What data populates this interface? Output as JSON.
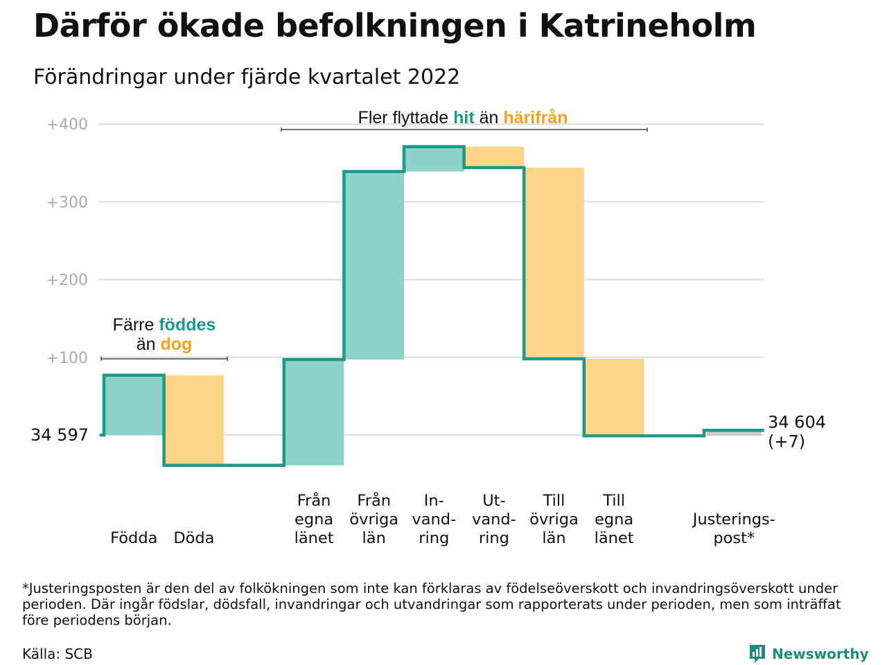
{
  "header": {
    "title": "Därför ökade befolkningen i Katrineholm",
    "subtitle": "Förändringar under fjärde kvartalet 2022"
  },
  "colors": {
    "inflow": "#8dd3cb",
    "outflow": "#fbd48a",
    "adjustment": "#cccccc",
    "line": "#1a9a8a",
    "hit": "#1a9a8a",
    "harifran": "#f5a11b",
    "grid": "#dddddd",
    "tick": "#aaaaaa"
  },
  "chart_data": {
    "type": "waterfall",
    "y_ticks": [
      "+100",
      "+200",
      "+300",
      "+400"
    ],
    "y_tick_values": [
      100,
      200,
      300,
      400
    ],
    "ylim": [
      -50,
      410
    ],
    "start": {
      "label": "34 597",
      "value": 34597
    },
    "end": {
      "label_line1": "34 604",
      "label_line2": "(+7)",
      "value": 34604,
      "change": 7
    },
    "steps": [
      {
        "label": [
          "Födda"
        ],
        "value": 77,
        "kind": "inflow"
      },
      {
        "label": [
          "Döda"
        ],
        "value": -116,
        "kind": "outflow"
      },
      {
        "label": [],
        "value": 0,
        "kind": "gap"
      },
      {
        "label": [
          "Från",
          "egna",
          "länet"
        ],
        "value": 136,
        "kind": "inflow"
      },
      {
        "label": [
          "Från",
          "övriga",
          "län"
        ],
        "value": 242,
        "kind": "inflow"
      },
      {
        "label": [
          "In-",
          "vand-",
          "ring"
        ],
        "value": 32,
        "kind": "inflow"
      },
      {
        "label": [
          "Ut-",
          "vand-",
          "ring"
        ],
        "value": -27,
        "kind": "outflow"
      },
      {
        "label": [
          "Till",
          "övriga",
          "län"
        ],
        "value": -246,
        "kind": "outflow"
      },
      {
        "label": [
          "Till",
          "egna",
          "länet"
        ],
        "value": -99,
        "kind": "outflow"
      },
      {
        "label": [],
        "value": 0,
        "kind": "gap"
      },
      {
        "label": [
          "Justerings-",
          "post*"
        ],
        "value": 7,
        "kind": "adjustment"
      }
    ],
    "annotations": {
      "births": {
        "line1_prefix": "Färre ",
        "line1_highlight": "föddes",
        "line2_prefix": "än ",
        "line2_highlight": "dog"
      },
      "moves": {
        "prefix": "Fler flyttade ",
        "highlight1": "hit",
        "middle": " än ",
        "highlight2": "härifrån"
      }
    }
  },
  "footer": {
    "footnote": "*Justeringsposten är den del av folkökningen som inte kan förklaras av födelseöverskott och invandringsöverskott under perioden. Där ingår födslar, dödsfall, invandringar och utvandringar som rapporterats under perioden, men som inträffat före periodens början.",
    "source": "Källa: SCB",
    "brand": "Newsworthy"
  }
}
